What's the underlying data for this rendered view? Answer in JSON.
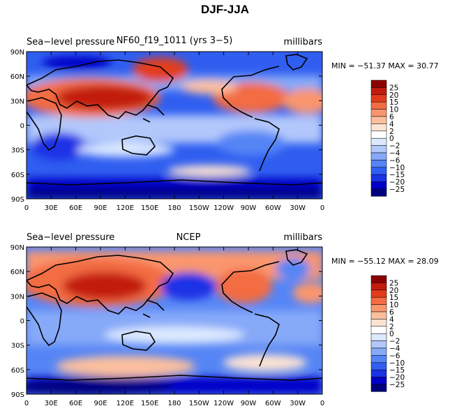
{
  "title": "DJF-JJA",
  "colors": {
    "scale": [
      "#00007f",
      "#0000c8",
      "#1a33e6",
      "#2f5ef0",
      "#5585f5",
      "#86a9f8",
      "#b2c8fb",
      "#dce9ff",
      "#ffffff",
      "#fde3d3",
      "#fbbf9e",
      "#f9966e",
      "#f36c43",
      "#e23c1a",
      "#c21b0e",
      "#8b0000"
    ],
    "land_outline": "#000000"
  },
  "colorbar": {
    "labels": [
      "25",
      "20",
      "15",
      "10",
      "6",
      "4",
      "2",
      "0",
      "−2",
      "−4",
      "−6",
      "−10",
      "−15",
      "−20",
      "−25"
    ]
  },
  "axes": {
    "x_ticks": [
      "0",
      "30E",
      "60E",
      "90E",
      "120E",
      "150E",
      "180",
      "150W",
      "120W",
      "90W",
      "60W",
      "30W",
      "0"
    ],
    "y_ticks": [
      "90N",
      "60N",
      "30N",
      "0",
      "30S",
      "60S",
      "90S"
    ]
  },
  "panels": [
    {
      "left_label": "Sea−level pressure",
      "center_label": "NF60_f19_1011 (yrs 3−5)",
      "right_label": "millibars",
      "stats": "MIN = −51.37 MAX =  30.77"
    },
    {
      "left_label": "Sea−level pressure",
      "center_label": "NCEP",
      "right_label": "millibars",
      "stats": "MIN = −55.12 MAX =  28.09"
    }
  ]
}
